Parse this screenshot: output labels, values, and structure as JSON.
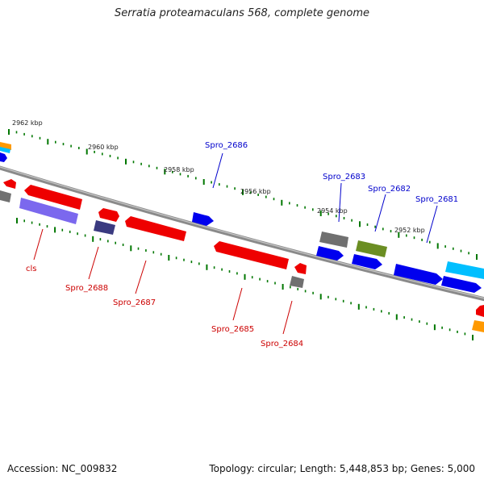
{
  "title": "Serratia proteamaculans 568, complete genome",
  "footer": {
    "accession": "Accession: NC_009832",
    "summary": "Topology: circular; Length: 5,448,853 bp; Genes: 5,000"
  },
  "kbp_labels": [
    "2962 kbp",
    "2960 kbp",
    "2958 kbp",
    "2956 kbp",
    "2954 kbp",
    "2952 kbp"
  ],
  "gene_labels_top": [
    "Spro_2686",
    "Spro_2683",
    "Spro_2682",
    "Spro_2681"
  ],
  "gene_labels_bottom": [
    "cls",
    "Spro_2688",
    "Spro_2687",
    "Spro_2685",
    "Spro_2684"
  ],
  "colors": {
    "backbone": "#808080",
    "red": "#ee0000",
    "blue": "#0000ee",
    "gray": "#707070",
    "olive": "#6b8e23",
    "purple": "#7b68ee",
    "navy": "#3a3a80",
    "cyan": "#00bfff",
    "orange": "#ff9900",
    "tick": "#007700"
  }
}
